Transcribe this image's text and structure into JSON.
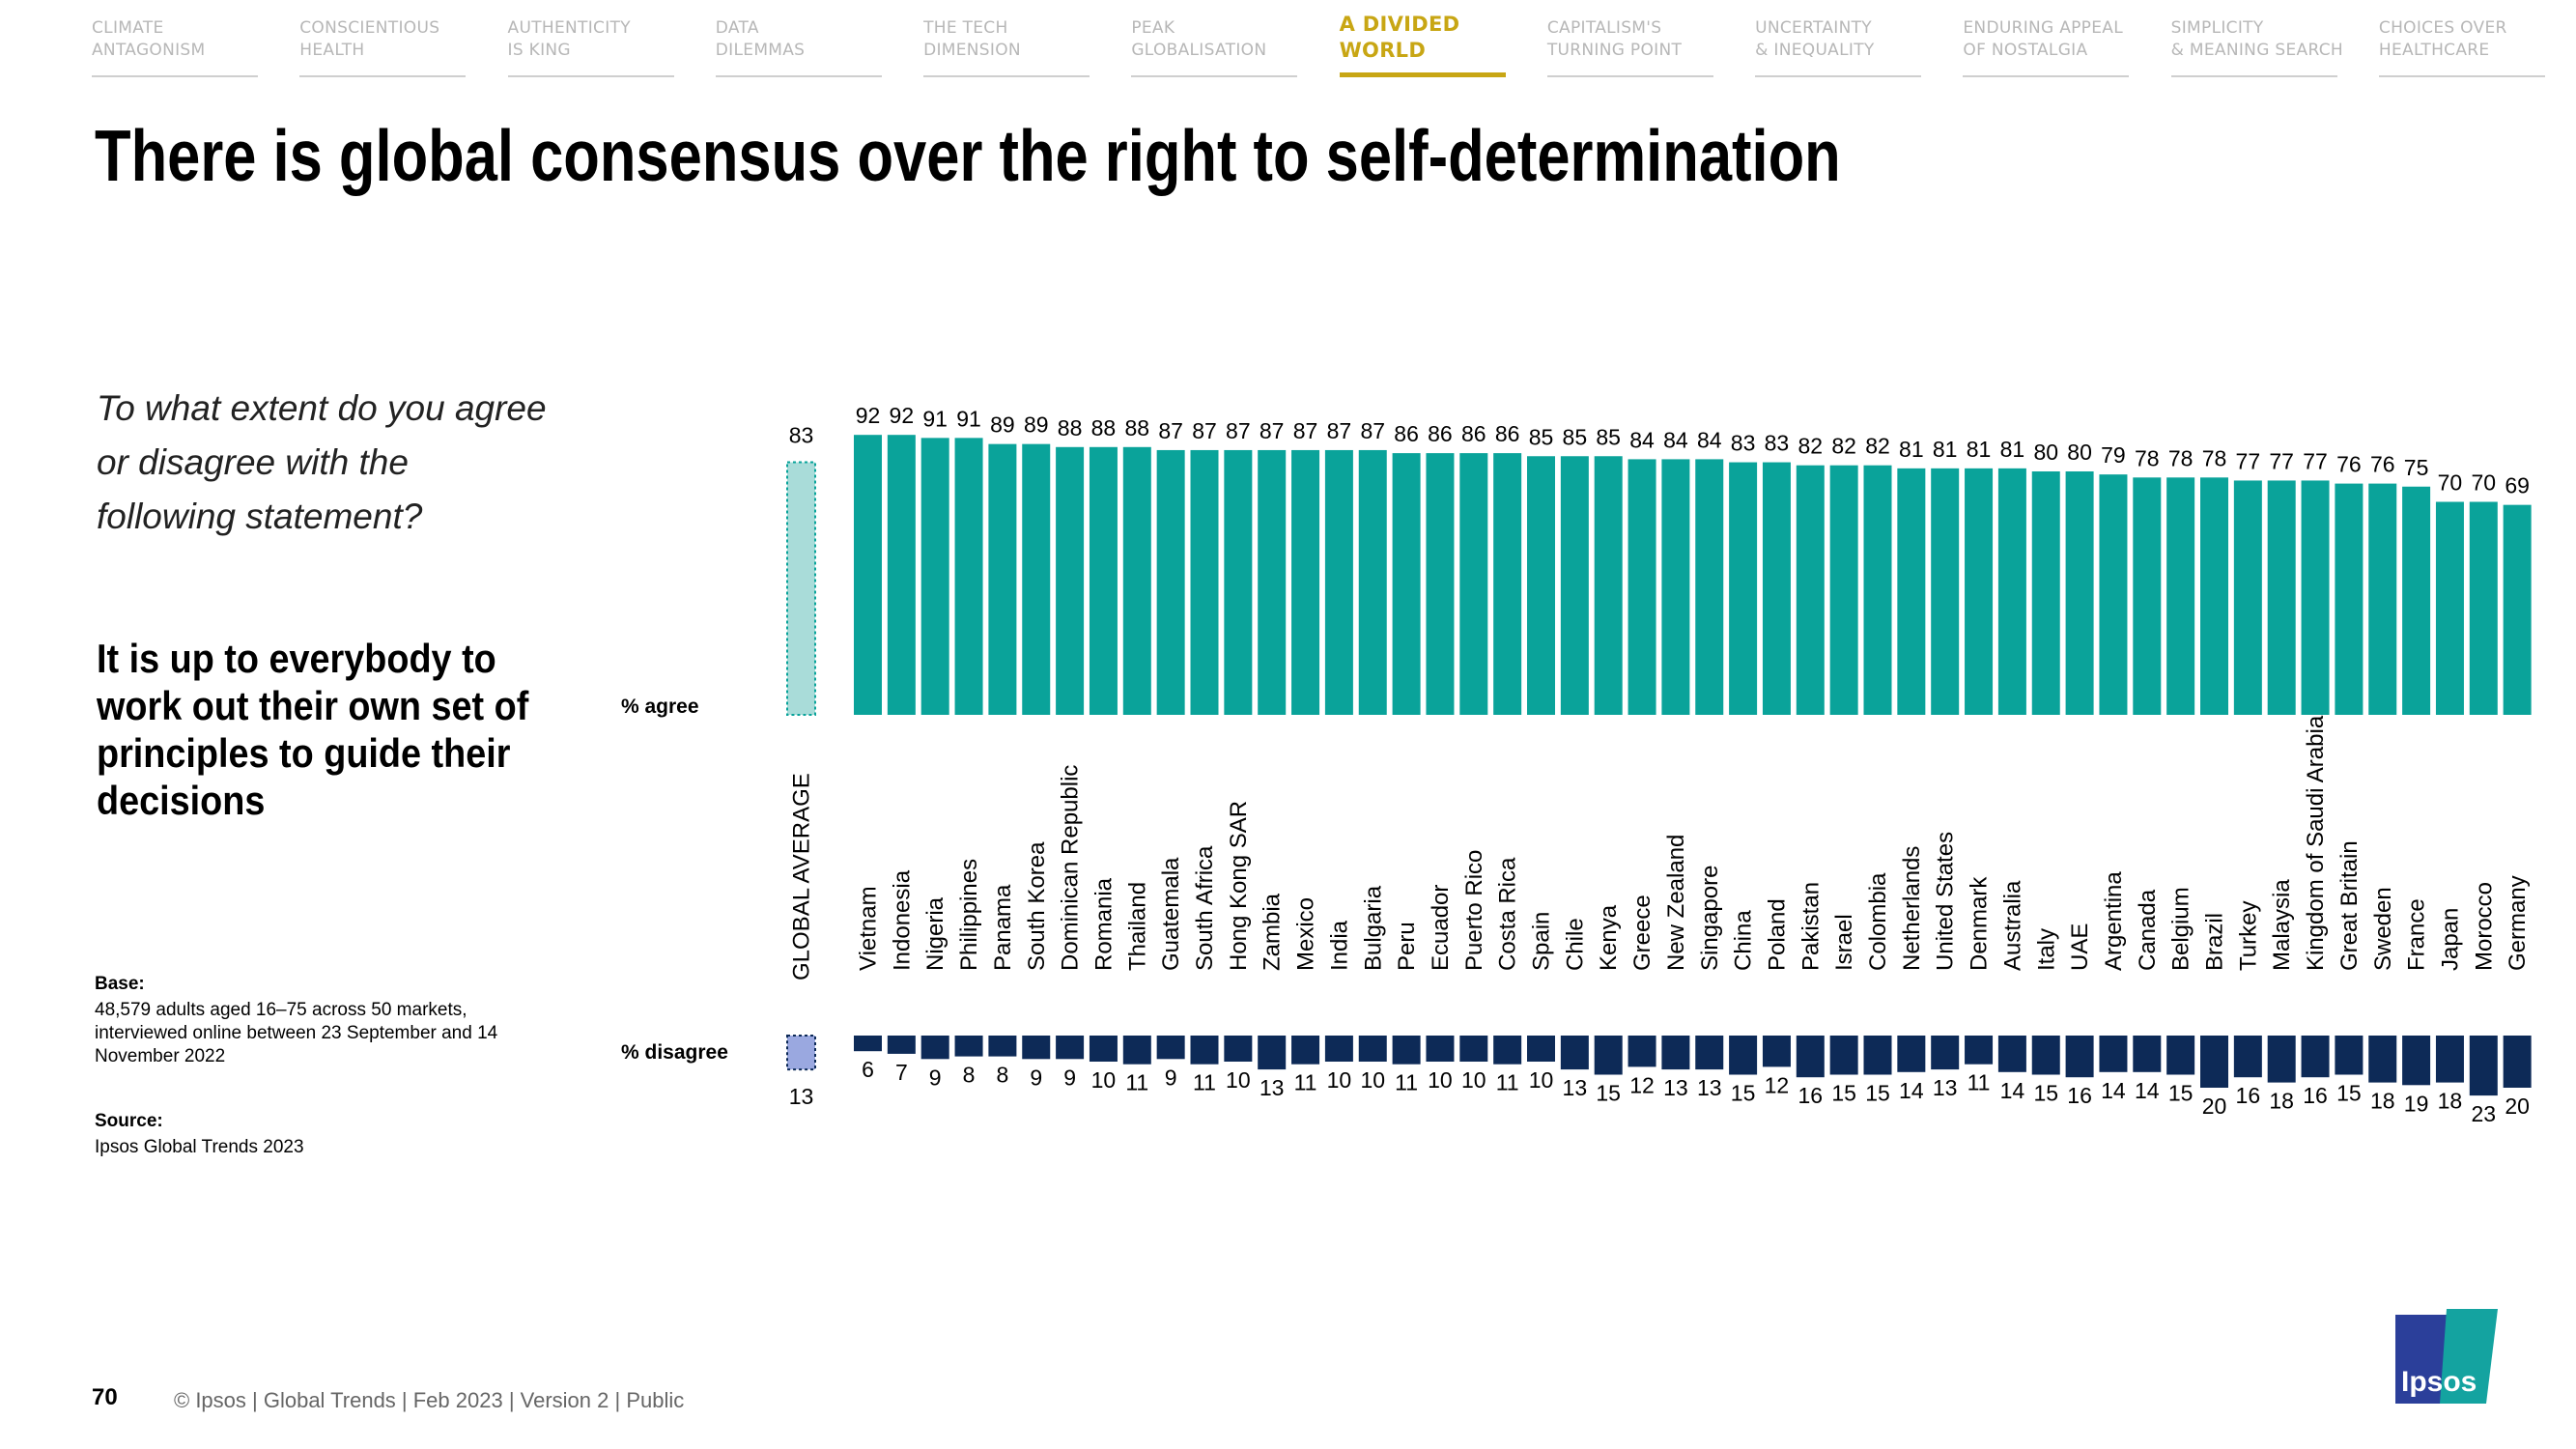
{
  "nav": {
    "tabs": [
      {
        "line1": "CLIMATE",
        "line2": "ANTAGONISM",
        "active": false
      },
      {
        "line1": "CONSCIENTIOUS",
        "line2": "HEALTH",
        "active": false
      },
      {
        "line1": "AUTHENTICITY",
        "line2": "IS KING",
        "active": false
      },
      {
        "line1": "DATA",
        "line2": "DILEMMAS",
        "active": false
      },
      {
        "line1": "THE TECH",
        "line2": "DIMENSION",
        "active": false
      },
      {
        "line1": "PEAK",
        "line2": "GLOBALISATION",
        "active": false
      },
      {
        "line1": "A DIVIDED",
        "line2": "WORLD",
        "active": true
      },
      {
        "line1": "CAPITALISM'S",
        "line2": "TURNING POINT",
        "active": false
      },
      {
        "line1": "UNCERTAINTY",
        "line2": "& INEQUALITY",
        "active": false
      },
      {
        "line1": "ENDURING APPEAL",
        "line2": "OF NOSTALGIA",
        "active": false
      },
      {
        "line1": "SIMPLICITY",
        "line2": "& MEANING SEARCH",
        "active": false
      },
      {
        "line1": "CHOICES OVER",
        "line2": "HEALTHCARE",
        "active": false
      }
    ]
  },
  "title": "There is global consensus over the right to self-determination",
  "question": "To what extent do you agree or disagree with the following statement?",
  "statement": "It is up to everybody to work out their own set of principles to guide their decisions",
  "base": {
    "label": "Base:",
    "text": "48,579 adults aged 16–75 across 50 markets, interviewed online between 23 September and 14 November 2022"
  },
  "source": {
    "label": "Source:",
    "text": "Ipsos Global Trends 2023"
  },
  "footer": {
    "page_number": "70",
    "text": "© Ipsos | Global Trends | Feb 2023 | Version 2 | Public"
  },
  "logo_text": "Ipsos",
  "colors": {
    "agree": "#0aa39a",
    "disagree": "#0d2a57",
    "global_agree_fill": "#a9dcd9",
    "global_agree_border": "#0aa39a",
    "global_disagree_fill": "#9aa8e0",
    "global_disagree_border": "#0d2a57",
    "nav_active": "#c8a614",
    "nav_inactive": "#b7b7b7",
    "logo_blue": "#2b3f9a",
    "logo_teal": "#14a3a0"
  },
  "chart_data": {
    "type": "bar",
    "series_labels": {
      "agree": "% agree",
      "disagree": "% disagree"
    },
    "global": {
      "label": "GLOBAL AVERAGE",
      "agree": 83,
      "disagree": 13
    },
    "categories": [
      "Vietnam",
      "Indonesia",
      "Nigeria",
      "Philippines",
      "Panama",
      "South Korea",
      "Dominican Republic",
      "Romania",
      "Thailand",
      "Guatemala",
      "South Africa",
      "Hong Kong SAR",
      "Zambia",
      "Mexico",
      "India",
      "Bulgaria",
      "Peru",
      "Ecuador",
      "Puerto Rico",
      "Costa Rica",
      "Spain",
      "Chile",
      "Kenya",
      "Greece",
      "New Zealand",
      "Singapore",
      "China",
      "Poland",
      "Pakistan",
      "Israel",
      "Colombia",
      "Netherlands",
      "United States",
      "Denmark",
      "Australia",
      "Italy",
      "UAE",
      "Argentina",
      "Canada",
      "Belgium",
      "Brazil",
      "Turkey",
      "Malaysia",
      "Kingdom of Saudi Arabia",
      "Great Britain",
      "Sweden",
      "France",
      "Japan",
      "Morocco",
      "Germany"
    ],
    "series": [
      {
        "name": "% agree",
        "values": [
          92,
          92,
          91,
          91,
          89,
          89,
          88,
          88,
          88,
          87,
          87,
          87,
          87,
          87,
          87,
          87,
          86,
          86,
          86,
          86,
          85,
          85,
          85,
          84,
          84,
          84,
          83,
          83,
          82,
          82,
          82,
          81,
          81,
          81,
          81,
          80,
          80,
          79,
          78,
          78,
          78,
          77,
          77,
          77,
          76,
          76,
          75,
          70,
          70,
          69
        ]
      },
      {
        "name": "% disagree",
        "values": [
          6,
          7,
          9,
          8,
          8,
          9,
          9,
          10,
          11,
          9,
          11,
          10,
          13,
          11,
          10,
          10,
          11,
          10,
          10,
          11,
          10,
          13,
          15,
          12,
          13,
          13,
          15,
          12,
          16,
          15,
          15,
          14,
          13,
          11,
          14,
          15,
          16,
          14,
          14,
          15,
          20,
          16,
          18,
          16,
          15,
          18,
          19,
          18,
          23,
          20
        ]
      }
    ],
    "ylim_agree": [
      0,
      100
    ],
    "ylim_disagree": [
      0,
      100
    ]
  }
}
